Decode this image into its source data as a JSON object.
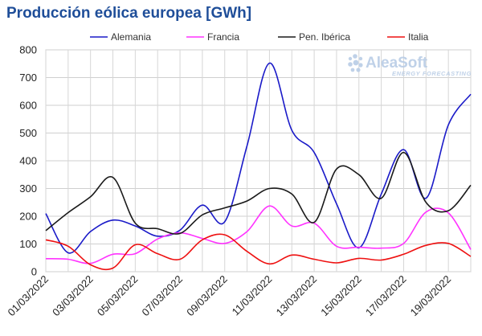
{
  "chart_data": {
    "type": "line",
    "title": "Producción eólica europea [GWh]",
    "xlabel": "",
    "ylabel": "",
    "ylim": [
      0,
      800
    ],
    "yticks": [
      0,
      100,
      200,
      300,
      400,
      500,
      600,
      700,
      800
    ],
    "grid": true,
    "legend_position": "top",
    "x": [
      "01/03/2022",
      "02/03/2022",
      "03/03/2022",
      "04/03/2022",
      "05/03/2022",
      "06/03/2022",
      "07/03/2022",
      "08/03/2022",
      "09/03/2022",
      "10/03/2022",
      "11/03/2022",
      "12/03/2022",
      "13/03/2022",
      "14/03/2022",
      "15/03/2022",
      "16/03/2022",
      "17/03/2022",
      "18/03/2022",
      "19/03/2022",
      "20/03/2022"
    ],
    "x_tick_labels": [
      "01/03/2022",
      "03/03/2022",
      "05/03/2022",
      "07/03/2022",
      "09/03/2022",
      "11/03/2022",
      "13/03/2022",
      "15/03/2022",
      "17/03/2022",
      "19/03/2022"
    ],
    "series": [
      {
        "name": "Alemania",
        "color": "#1a1ac8",
        "values": [
          210,
          68,
          145,
          186,
          165,
          128,
          150,
          240,
          180,
          455,
          752,
          510,
          430,
          245,
          86,
          280,
          440,
          265,
          530,
          640
        ]
      },
      {
        "name": "Francia",
        "color": "#ff33ff",
        "values": [
          47,
          45,
          30,
          63,
          65,
          118,
          140,
          120,
          102,
          145,
          237,
          165,
          175,
          92,
          88,
          85,
          102,
          215,
          212,
          80
        ]
      },
      {
        "name": "Pen. Ibérica",
        "color": "#1a1a1a",
        "values": [
          148,
          213,
          270,
          340,
          175,
          155,
          138,
          205,
          230,
          255,
          300,
          280,
          178,
          370,
          350,
          265,
          430,
          250,
          220,
          312
        ]
      },
      {
        "name": "Italia",
        "color": "#ee1111",
        "values": [
          115,
          92,
          25,
          13,
          97,
          65,
          45,
          115,
          133,
          73,
          28,
          60,
          45,
          32,
          48,
          42,
          63,
          95,
          102,
          55
        ]
      }
    ]
  },
  "watermark": {
    "brand": "AleaSoft",
    "tagline": "ENERGY FORECASTING",
    "color": "#b9cde6"
  }
}
